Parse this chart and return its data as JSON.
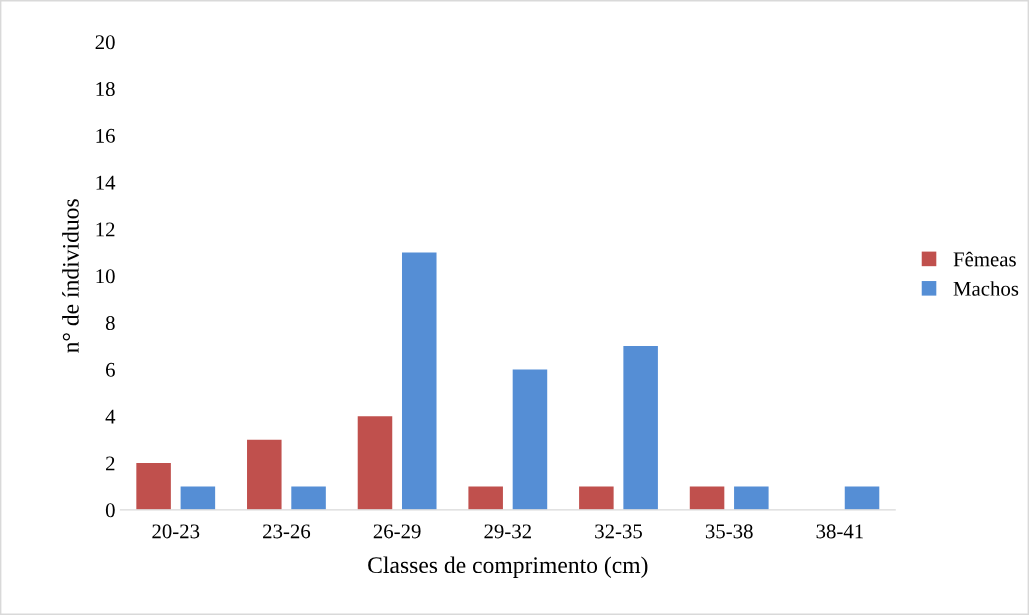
{
  "chart_data": {
    "type": "bar",
    "xlabel": "Classes de comprimento (cm)",
    "ylabel": "n° de índividuos",
    "categories": [
      "20-23",
      "23-26",
      "26-29",
      "29-32",
      "32-35",
      "35-38",
      "38-41"
    ],
    "series": [
      {
        "name": "Fêmeas",
        "color": "#c0504d",
        "values": [
          2,
          3,
          4,
          1,
          1,
          1,
          0
        ]
      },
      {
        "name": "Machos",
        "color": "#558ed5",
        "values": [
          1,
          1,
          11,
          6,
          7,
          1,
          1
        ]
      }
    ],
    "ylim": [
      0,
      20
    ],
    "yticks": [
      0,
      2,
      4,
      6,
      8,
      10,
      12,
      14,
      16,
      18,
      20
    ],
    "legend": "right",
    "grid": false
  }
}
